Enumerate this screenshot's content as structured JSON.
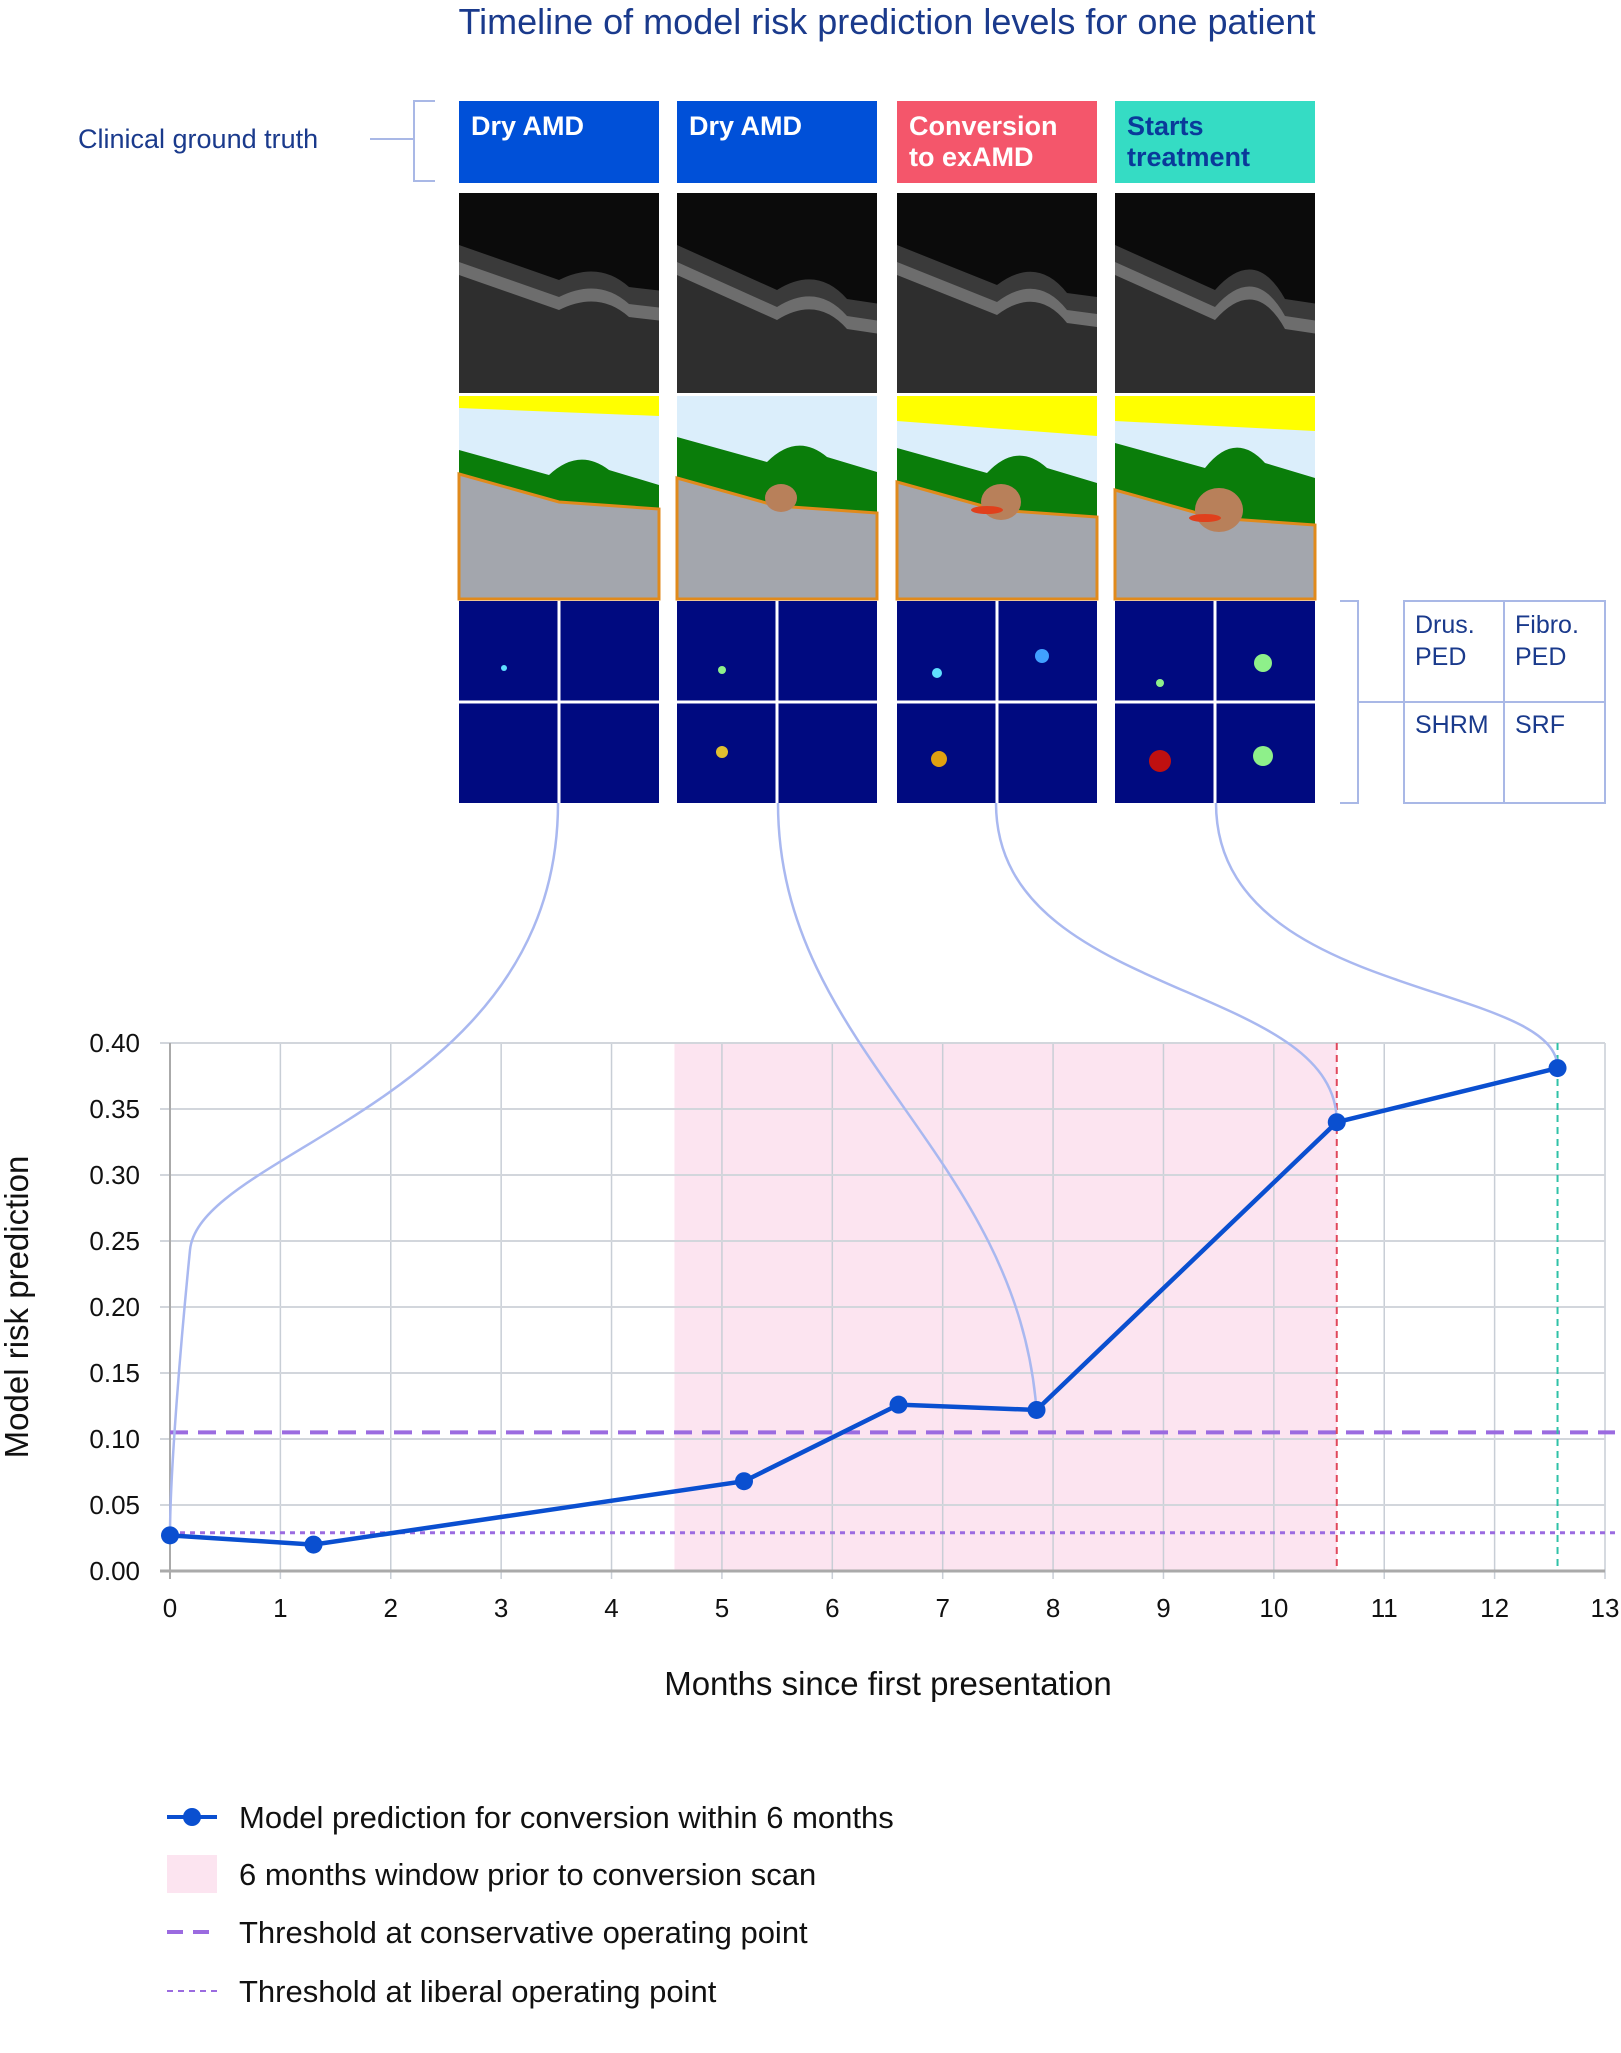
{
  "title": "Timeline of model risk prediction levels for one patient",
  "side_label": "Clinical ground truth",
  "panels": [
    {
      "label_line1": "Dry AMD",
      "label_line2": "",
      "color": "#0050d8",
      "text_color": "#ffffff"
    },
    {
      "label_line1": "Dry AMD",
      "label_line2": "",
      "color": "#0050d8",
      "text_color": "#ffffff"
    },
    {
      "label_line1": "Conversion",
      "label_line2": "to exAMD",
      "color": "#f4566b",
      "text_color": "#ffffff"
    },
    {
      "label_line1": "Starts",
      "label_line2": "treatment",
      "color": "#35dcc4",
      "text_color": "#0a3a9a"
    }
  ],
  "heatmap_legend": {
    "top_left": [
      "Drus.",
      "PED"
    ],
    "top_right": [
      "Fibro.",
      "PED"
    ],
    "bottom_left": "SHRM",
    "bottom_right": "SRF"
  },
  "chart_data": {
    "type": "line",
    "xlabel": "Months since first presentation",
    "ylabel": "Model risk prediction",
    "xlim": [
      0,
      13
    ],
    "ylim": [
      0,
      0.4
    ],
    "xticks": [
      "0",
      "1",
      "2",
      "3",
      "4",
      "5",
      "6",
      "7",
      "8",
      "9",
      "10",
      "11",
      "12",
      "13"
    ],
    "yticks": [
      "0.00",
      "0.05",
      "0.10",
      "0.15",
      "0.20",
      "0.25",
      "0.30",
      "0.35",
      "0.40"
    ],
    "grid": true,
    "series": [
      {
        "name": "Model prediction for conversion within 6 months",
        "x": [
          0,
          1.3,
          5.2,
          6.6,
          7.85,
          10.57,
          12.57
        ],
        "y": [
          0.027,
          0.02,
          0.068,
          0.126,
          0.122,
          0.34,
          0.381
        ],
        "color": "#0a4fd0"
      }
    ],
    "shaded_region": {
      "name": "6 months window prior to conversion scan",
      "x": [
        4.57,
        10.57
      ],
      "color": "#fce4f0"
    },
    "thresholds": [
      {
        "name": "Threshold at conservative operating point",
        "y": 0.105,
        "style": "dashed",
        "color": "#9b6be0"
      },
      {
        "name": "Threshold at liberal operating point",
        "y": 0.029,
        "style": "dotted",
        "color": "#9b6be0"
      }
    ],
    "vertical_markers": [
      {
        "x": 10.57,
        "color": "#e0485c"
      },
      {
        "x": 12.57,
        "color": "#2fc2a8"
      }
    ],
    "scan_links": [
      0,
      4,
      5,
      6
    ],
    "legend_position": "bottom-left"
  }
}
